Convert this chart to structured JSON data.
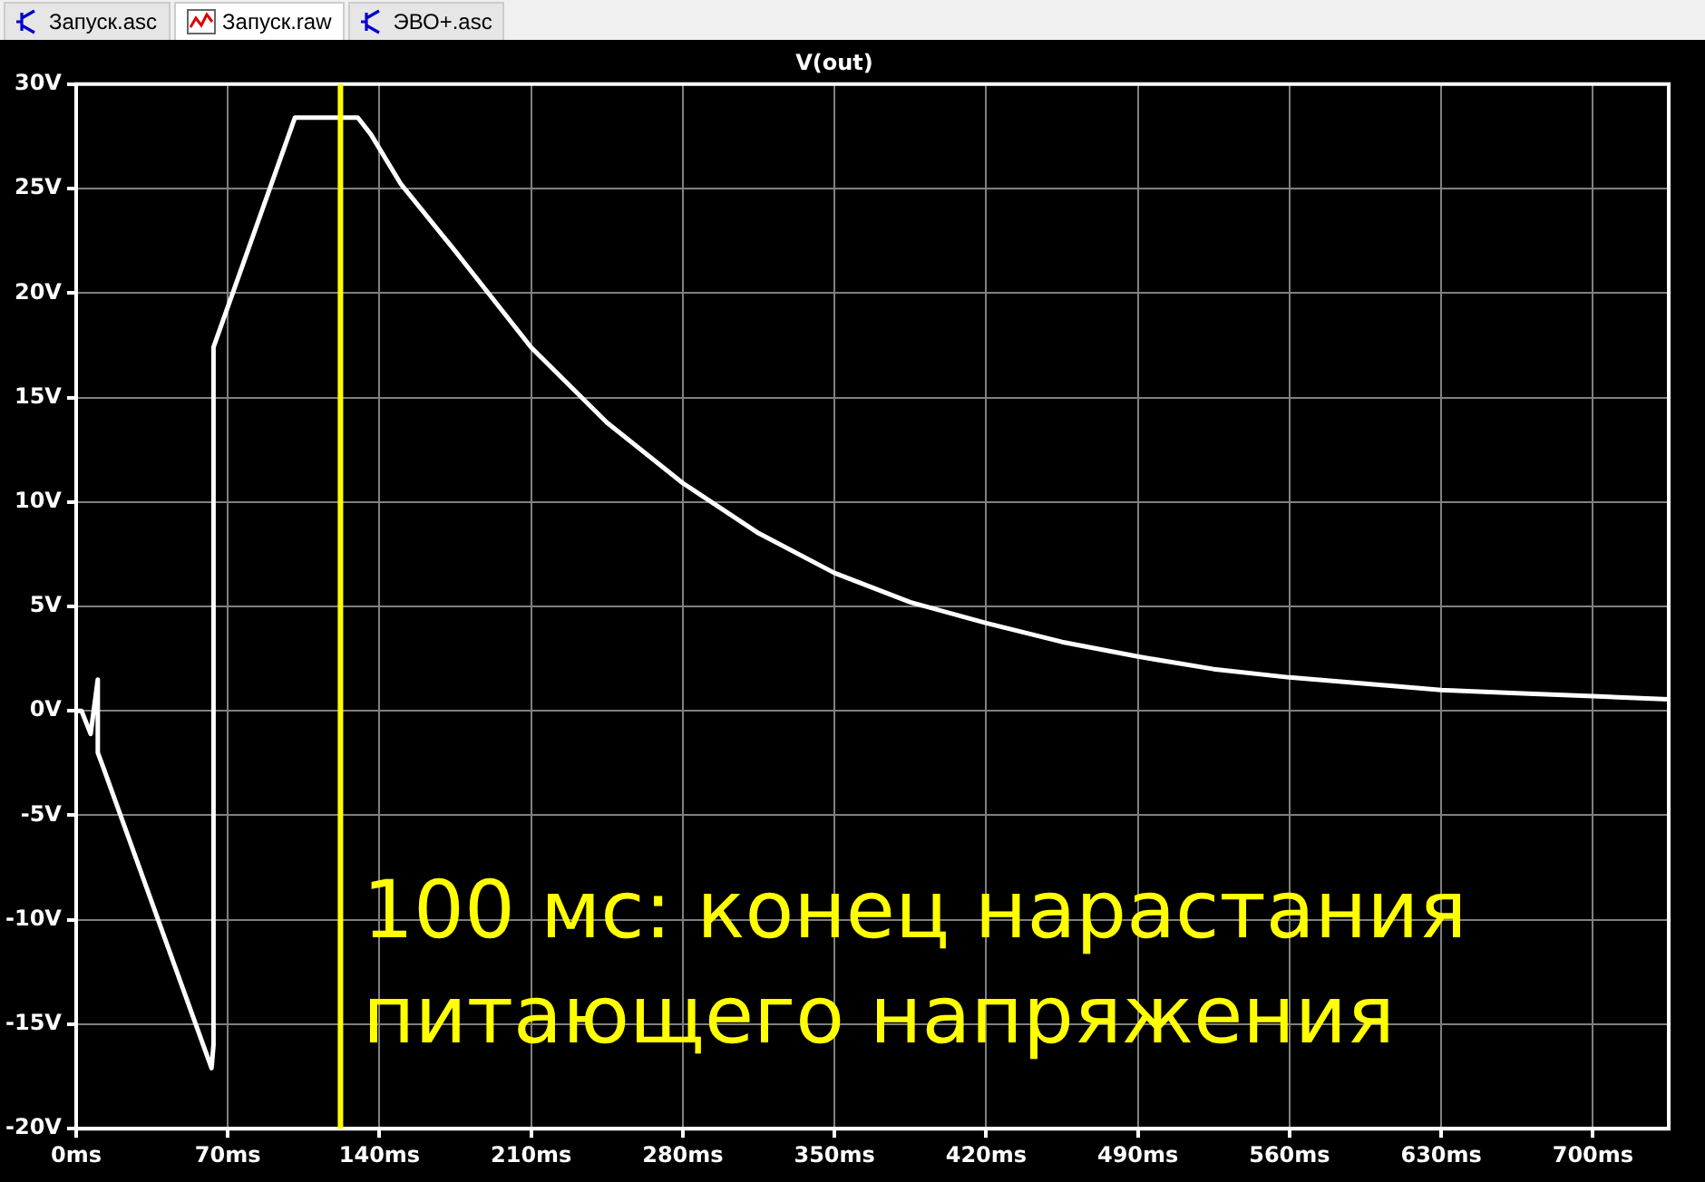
{
  "chart_data": {
    "type": "line",
    "title": "V(out)",
    "annotations": [
      "Запуск.asc",
      "Запуск.raw",
      "ЭВО+.asc",
      "100 мс: конец нарастания питающего напряжения"
    ],
    "x": [
      0,
      2.5,
      6.7,
      10,
      10,
      12.5,
      62.5,
      63.4,
      63.4,
      101,
      130,
      136,
      150,
      175,
      210,
      245,
      280,
      315,
      350,
      385,
      420,
      455,
      490,
      525,
      560,
      595,
      630,
      665,
      700,
      735
    ],
    "series": [
      {
        "color": "#ffffff",
        "values": [
          0,
          0,
          -1.1,
          1.5,
          -2,
          -2.7,
          -17.1,
          -16,
          17.4,
          28.4,
          28.4,
          27.6,
          25.2,
          22,
          17.4,
          13.8,
          10.9,
          8.5,
          6.6,
          5.2,
          4.2,
          3.3,
          2.6,
          2,
          1.6,
          1.3,
          1,
          0.85,
          0.7,
          0.55
        ]
      }
    ],
    "xlim": [
      0,
      735
    ],
    "xticks": [
      {
        "value": 0,
        "label": "0ms"
      },
      {
        "value": 70,
        "label": "70ms"
      },
      {
        "value": 140,
        "label": "140ms"
      },
      {
        "value": 210,
        "label": "210ms"
      },
      {
        "value": 280,
        "label": "280ms"
      },
      {
        "value": 350,
        "label": "350ms"
      },
      {
        "value": 420,
        "label": "420ms"
      },
      {
        "value": 490,
        "label": "490ms"
      },
      {
        "value": 560,
        "label": "560ms"
      },
      {
        "value": 630,
        "label": "630ms"
      },
      {
        "value": 700,
        "label": "700ms"
      }
    ],
    "ylim": [
      -20,
      30
    ],
    "yticks": [
      {
        "value": -20,
        "label": "-20V"
      },
      {
        "value": -15,
        "label": "-15V"
      },
      {
        "value": -10,
        "label": "-10V"
      },
      {
        "value": -5,
        "label": "-5V"
      },
      {
        "value": 0,
        "label": "0V"
      },
      {
        "value": 5,
        "label": "5V"
      },
      {
        "value": 10,
        "label": "10V"
      },
      {
        "value": 15,
        "label": "15V"
      },
      {
        "value": 20,
        "label": "20V"
      },
      {
        "value": 25,
        "label": "25V"
      },
      {
        "value": 30,
        "label": "30V"
      }
    ],
    "ref_lines": [
      {
        "axis": "x",
        "value": 122,
        "color": "#ffff00"
      }
    ],
    "grid": true,
    "line_style": "solid",
    "marker": "none"
  }
}
